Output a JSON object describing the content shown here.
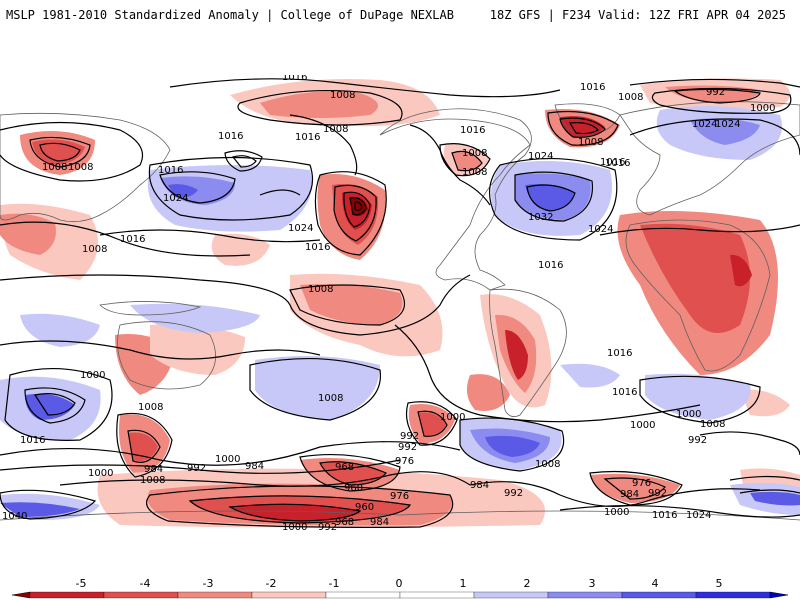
{
  "header": {
    "left_title": "MSLP 1981-2010 Standardized Anomaly | College of DuPage NEXLAB",
    "right_title": "18Z GFS | F234 Valid: 12Z FRI APR 04 2025"
  },
  "colors": {
    "neg5": "#8b0000",
    "neg4": "#c8212b",
    "neg3": "#e0504f",
    "neg2": "#f08a80",
    "neg1": "#fbc8c0",
    "zero": "#ffffff",
    "pos1": "#c8c8f8",
    "pos2": "#8c8cf0",
    "pos3": "#5a5ae6",
    "pos4": "#2e2edc",
    "pos5": "#0000c8",
    "contour": "#000000",
    "coast": "#606060"
  },
  "colorbar": {
    "ticks": [
      "-5",
      "-4",
      "-3",
      "-2",
      "-1",
      "0",
      "1",
      "2",
      "3",
      "4",
      "5"
    ]
  },
  "isobar_labels": [
    {
      "text": "1016"
    },
    {
      "text": "1008"
    },
    {
      "text": "992"
    },
    {
      "text": "1000"
    },
    {
      "text": "1024"
    },
    {
      "text": "1016"
    },
    {
      "text": "1008"
    },
    {
      "text": "1008"
    },
    {
      "text": "1016"
    },
    {
      "text": "1016"
    },
    {
      "text": "1016"
    },
    {
      "text": "1008"
    },
    {
      "text": "1024"
    },
    {
      "text": "1016"
    },
    {
      "text": "1024"
    },
    {
      "text": "1032"
    },
    {
      "text": "1024"
    },
    {
      "text": "1016"
    },
    {
      "text": "1008"
    },
    {
      "text": "1008"
    },
    {
      "text": "1016"
    },
    {
      "text": "1008"
    },
    {
      "text": "1008"
    },
    {
      "text": "1016"
    },
    {
      "text": "1008"
    },
    {
      "text": "1016"
    },
    {
      "text": "1024"
    },
    {
      "text": "1016"
    },
    {
      "text": "1024"
    },
    {
      "text": "1008"
    },
    {
      "text": "1000"
    },
    {
      "text": "1016"
    },
    {
      "text": "1016"
    },
    {
      "text": "1000"
    },
    {
      "text": "1008"
    },
    {
      "text": "992"
    },
    {
      "text": "1000"
    },
    {
      "text": "992"
    },
    {
      "text": "984"
    },
    {
      "text": "976"
    },
    {
      "text": "968"
    },
    {
      "text": "960"
    },
    {
      "text": "976"
    },
    {
      "text": "984"
    },
    {
      "text": "992"
    },
    {
      "text": "960"
    },
    {
      "text": "968"
    },
    {
      "text": "984"
    },
    {
      "text": "992"
    },
    {
      "text": "1000"
    },
    {
      "text": "1000"
    },
    {
      "text": "1008"
    },
    {
      "text": "984"
    },
    {
      "text": "992"
    },
    {
      "text": "1008"
    },
    {
      "text": "1000"
    },
    {
      "text": "1040"
    },
    {
      "text": "976"
    },
    {
      "text": "984"
    },
    {
      "text": "992"
    },
    {
      "text": "1000"
    },
    {
      "text": "1016"
    },
    {
      "text": "1024"
    },
    {
      "text": "992"
    },
    {
      "text": "1008"
    },
    {
      "text": "1000"
    },
    {
      "text": "1008"
    },
    {
      "text": "1016"
    }
  ]
}
